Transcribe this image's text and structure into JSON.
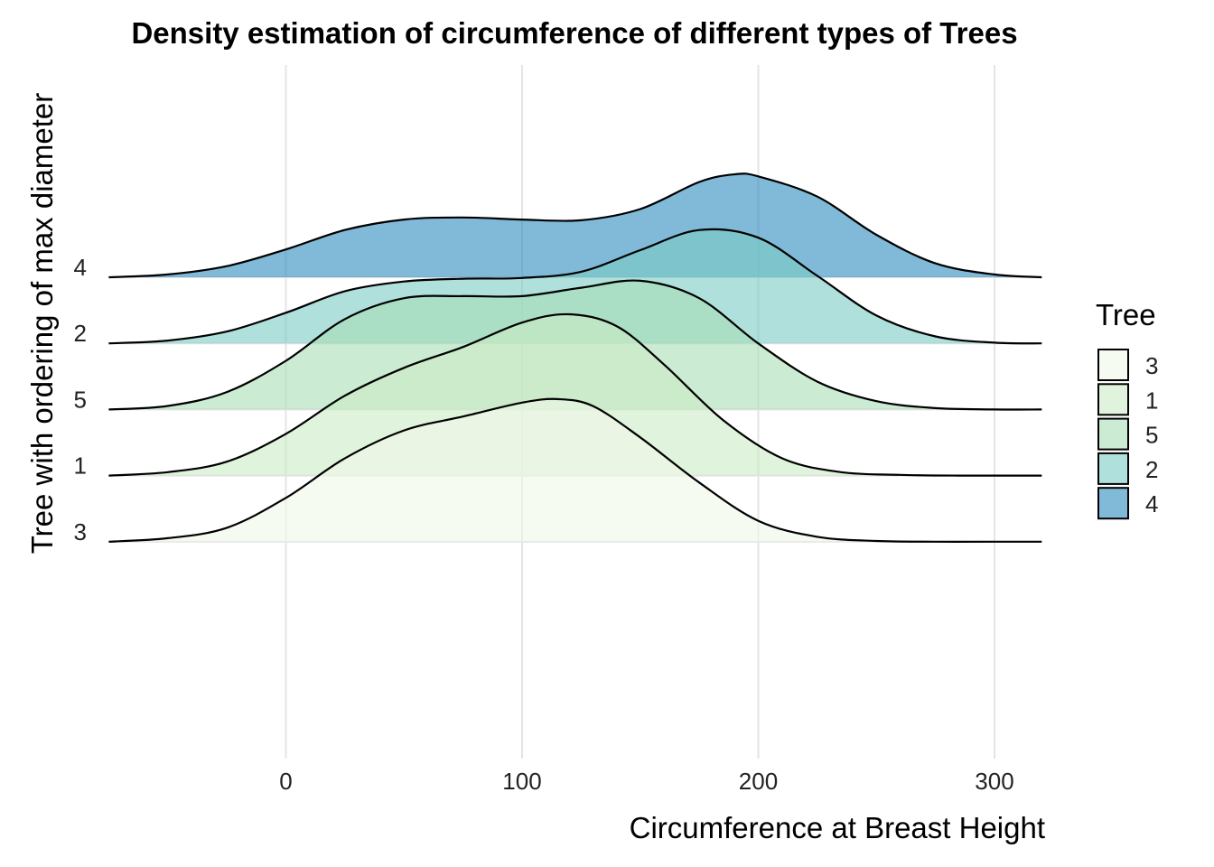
{
  "chart_data": {
    "type": "ridgeline",
    "title": "Density estimation of circumference of different types of Trees",
    "xlabel": "Circumference at Breast Height",
    "ylabel": "Tree with ordering of max diameter",
    "xlim": [
      -75,
      320
    ],
    "x_ticks": [
      0,
      100,
      200,
      300
    ],
    "y_order": [
      "3",
      "1",
      "5",
      "2",
      "4"
    ],
    "grid": true,
    "legend": {
      "title": "Tree",
      "placement": "right",
      "entries": [
        "3",
        "1",
        "5",
        "2",
        "4"
      ]
    },
    "colors": {
      "3": "#f0f9e8",
      "1": "#ccebc5",
      "5": "#a8ddb5",
      "2": "#7bccc4",
      "4": "#2b8cbe"
    },
    "series": [
      {
        "name": "3",
        "x": [
          -75,
          -50,
          -25,
          0,
          25,
          50,
          75,
          100,
          115,
          130,
          150,
          175,
          200,
          225,
          250,
          275,
          300,
          320
        ],
        "density": [
          0.0,
          0.0005,
          0.002,
          0.0063,
          0.012,
          0.016,
          0.018,
          0.02,
          0.0205,
          0.0195,
          0.015,
          0.0085,
          0.003,
          0.0007,
          0.0001,
          0.0,
          0.0,
          0.0
        ]
      },
      {
        "name": "1",
        "x": [
          -75,
          -50,
          -25,
          0,
          25,
          50,
          75,
          100,
          120,
          140,
          160,
          185,
          210,
          235,
          260,
          285,
          320
        ],
        "density": [
          0.0,
          0.0005,
          0.002,
          0.006,
          0.0115,
          0.0155,
          0.0185,
          0.022,
          0.0232,
          0.0215,
          0.016,
          0.008,
          0.0025,
          0.0005,
          0.0001,
          0.0,
          0.0
        ]
      },
      {
        "name": "5",
        "x": [
          -75,
          -50,
          -25,
          0,
          25,
          50,
          75,
          100,
          125,
          150,
          175,
          200,
          225,
          250,
          275,
          300,
          320
        ],
        "density": [
          0.0,
          0.0005,
          0.0025,
          0.007,
          0.013,
          0.016,
          0.0163,
          0.0163,
          0.0175,
          0.0185,
          0.016,
          0.0095,
          0.004,
          0.0012,
          0.0002,
          0.0,
          0.0
        ]
      },
      {
        "name": "2",
        "x": [
          -75,
          -50,
          -25,
          0,
          25,
          50,
          75,
          100,
          125,
          150,
          175,
          200,
          225,
          250,
          275,
          300,
          320
        ],
        "density": [
          0.0,
          0.0004,
          0.0017,
          0.0044,
          0.0075,
          0.0089,
          0.0093,
          0.0094,
          0.0103,
          0.0134,
          0.0163,
          0.0152,
          0.0097,
          0.004,
          0.001,
          0.0001,
          0.0
        ]
      },
      {
        "name": "4",
        "x": [
          -75,
          -50,
          -25,
          0,
          25,
          50,
          75,
          100,
          125,
          150,
          175,
          190,
          200,
          225,
          250,
          275,
          300,
          320
        ],
        "density": [
          0.0,
          0.0004,
          0.0016,
          0.004,
          0.0068,
          0.0083,
          0.0086,
          0.0083,
          0.0082,
          0.0098,
          0.0137,
          0.0148,
          0.0145,
          0.0116,
          0.0061,
          0.002,
          0.0004,
          0.0
        ]
      }
    ]
  }
}
